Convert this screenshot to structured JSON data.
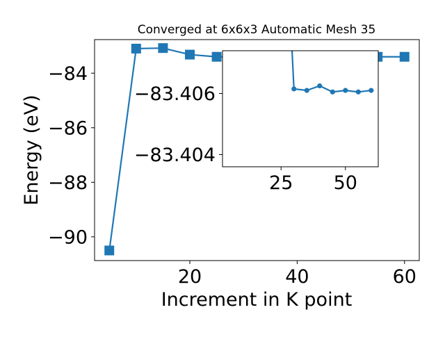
{
  "chart_data": [
    {
      "type": "line",
      "title": "Converged at 6x6x3 Automatic Mesh 35",
      "xlabel": "Increment in K point",
      "ylabel": "Energy (eV)",
      "xlim": [
        2.25,
        62.75
      ],
      "ylim": [
        -90.87,
        -82.77
      ],
      "x_ticks": [
        20,
        40,
        60
      ],
      "y_ticks": [
        -90,
        -88,
        -86,
        -84
      ],
      "x_tick_labels": [
        "20",
        "40",
        "60"
      ],
      "y_tick_labels": [
        "−90",
        "−88",
        "−86",
        "−84"
      ],
      "grid": false,
      "legend": "none",
      "color": "#1f77b4",
      "marker": "square",
      "series": [
        {
          "x": [
            5,
            10,
            15,
            20,
            25,
            30,
            35,
            40,
            45,
            50,
            55,
            60
          ],
          "values": [
            -90.5,
            -83.1,
            -83.08,
            -83.32,
            -83.4,
            -83.4,
            -83.4,
            -83.4,
            -83.4,
            -83.4,
            -83.4,
            -83.4
          ]
        }
      ]
    },
    {
      "type": "line",
      "title": "",
      "xlabel": "",
      "ylabel": "",
      "placement": "inset",
      "xlim": [
        2.25,
        62.75
      ],
      "ylim": [
        -83.4036,
        -83.4074
      ],
      "x_ticks": [
        25,
        50
      ],
      "y_ticks": [
        -83.406,
        -83.404
      ],
      "x_tick_labels": [
        "25",
        "50"
      ],
      "y_tick_labels": [
        "−83.406",
        "−83.404"
      ],
      "grid": false,
      "legend": "none",
      "color": "#1f77b4",
      "marker": "circle",
      "series": [
        {
          "x": [
            30,
            35,
            40,
            45,
            50,
            55,
            60
          ],
          "values": [
            -83.40615,
            -83.4061,
            -83.40625,
            -83.40605,
            -83.4061,
            -83.40605,
            -83.4061
          ],
          "enters_from_above_at": 29
        }
      ]
    }
  ]
}
